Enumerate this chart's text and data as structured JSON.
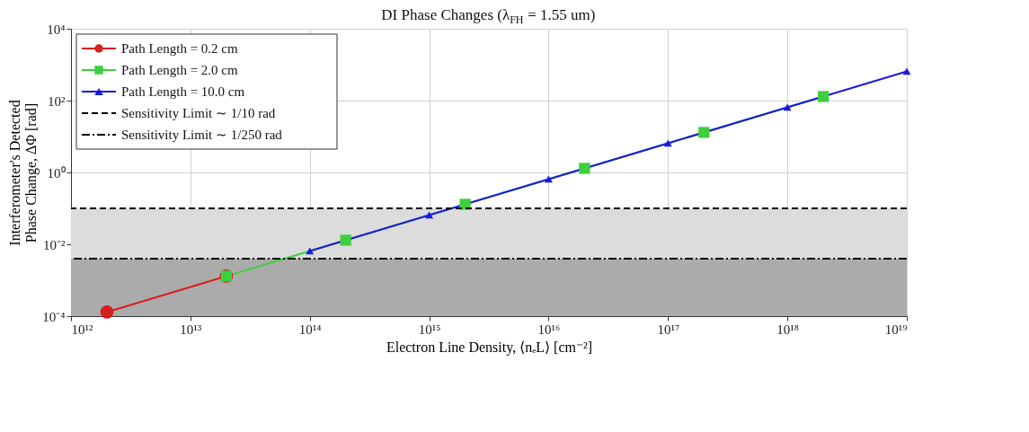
{
  "chart_data": {
    "type": "line",
    "title": "DI Phase Changes (λ$_{FH}$ = 1.55 um)",
    "xlabel": "Electron Line Density, ⟨nₑL⟩ [cm⁻²]",
    "ylabel": "Interferometer's Detected\nPhase Change, ΔΦ [rad]",
    "log": "xy",
    "xlim": [
      1000000000000.0,
      1e+19
    ],
    "ylim": [
      0.0001,
      10000
    ],
    "xticks": [
      {
        "value": 1000000000000.0,
        "label": "10¹²"
      },
      {
        "value": 10000000000000.0,
        "label": "10¹³"
      },
      {
        "value": 100000000000000.0,
        "label": "10¹⁴"
      },
      {
        "value": 1000000000000000.0,
        "label": "10¹⁵"
      },
      {
        "value": 1e+16,
        "label": "10¹⁶"
      },
      {
        "value": 1e+17,
        "label": "10¹⁷"
      },
      {
        "value": 1e+18,
        "label": "10¹⁸"
      },
      {
        "value": 1e+19,
        "label": "10¹⁹"
      }
    ],
    "yticks": [
      {
        "value": 0.0001,
        "label": "10⁻⁴"
      },
      {
        "value": 0.01,
        "label": "10⁻²"
      },
      {
        "value": 1,
        "label": "10⁰"
      },
      {
        "value": 100,
        "label": "10²"
      },
      {
        "value": 10000,
        "label": "10⁴"
      }
    ],
    "grid": true,
    "legend": "top left",
    "series": [
      {
        "name": "Path Length = 0.2 cm",
        "color": "#d62020",
        "marker": "circle",
        "x": [
          2000000000000.0,
          20000000000000.0
        ],
        "values": [
          0.00013,
          0.0013
        ]
      },
      {
        "name": "Path Length = 2.0 cm",
        "color": "#3ecf3e",
        "marker": "square",
        "x": [
          20000000000000.0,
          200000000000000.0,
          2000000000000000.0,
          2e+16,
          2e+17,
          2e+18
        ],
        "values": [
          0.0013,
          0.013,
          0.13,
          1.3,
          13,
          130
        ]
      },
      {
        "name": "Path Length = 10.0 cm",
        "color": "#1a1adf",
        "marker": "triangle",
        "x": [
          100000000000000.0,
          1000000000000000.0,
          1e+16,
          1e+17,
          1e+18,
          1e+19
        ],
        "values": [
          0.0065,
          0.065,
          0.65,
          6.5,
          65,
          650
        ]
      }
    ],
    "ref_lines": [
      {
        "axis": "y",
        "value": 0.1,
        "label": "Sensitivity Limit ∼ 1/10 rad",
        "color": "#000000",
        "line_style": "dashed"
      },
      {
        "axis": "y",
        "value": 0.004,
        "label": "Sensitivity Limit ∼ 1/250 rad",
        "color": "#000000",
        "line_style": "dashdot"
      }
    ],
    "bands": [
      {
        "axis": "y",
        "from": 0.004,
        "to": 0.1,
        "color": "#dcdcdc"
      },
      {
        "axis": "y",
        "from": 0.0001,
        "to": 0.004,
        "color": "#ababab"
      }
    ]
  }
}
